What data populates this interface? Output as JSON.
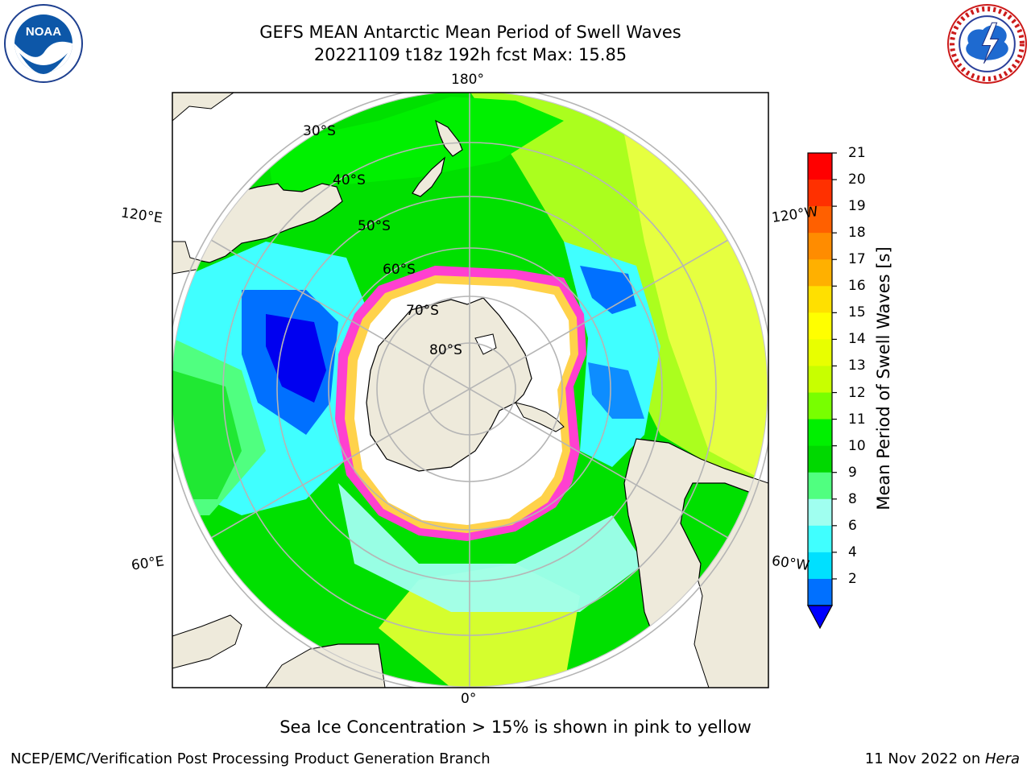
{
  "header": {
    "title_line1": "GEFS MEAN Antarctic Mean Period of Swell Waves",
    "title_line2": "20221109 t18z 192h fcst   Max: 15.85"
  },
  "logos": {
    "left": "NOAA",
    "right": "NATIONAL WEATHER SERVICE"
  },
  "map": {
    "projection": "south polar stereographic",
    "meridian_labels": {
      "top": "180°",
      "bottom": "0°",
      "left_upper": "120°E",
      "left_lower": "60°E",
      "right_upper": "120°W",
      "right_lower": "60°W"
    },
    "parallel_labels": [
      "30°S",
      "40°S",
      "50°S",
      "60°S",
      "70°S",
      "80°S"
    ],
    "colors": {
      "land": "#eeeadb",
      "sea_ice_open": "#ffffff",
      "sea_ice_edge_pink": "#ff40d0",
      "sea_ice_edge_yellow": "#ffd24a",
      "grid": "#b5b5b5"
    }
  },
  "colorbar": {
    "label": "Mean Period of Swell Waves [s]",
    "ticks": [
      "21",
      "20",
      "19",
      "18",
      "17",
      "16",
      "15",
      "14",
      "13",
      "12",
      "11",
      "10",
      "9",
      "8",
      "6",
      "4",
      "2"
    ],
    "colors": [
      "#ff0000",
      "#ff3000",
      "#ff6000",
      "#ff8c00",
      "#ffb000",
      "#ffe000",
      "#ffff00",
      "#e8ff00",
      "#c8ff00",
      "#78ff00",
      "#00f000",
      "#00d800",
      "#50ff80",
      "#a0fff0",
      "#40ffff",
      "#00e0ff",
      "#0070ff"
    ],
    "extend_color": "#0000ff"
  },
  "caption": "Sea Ice Concentration > 15% is shown in pink to yellow",
  "footer": {
    "left": "NCEP/EMC/Verification Post Processing Product Generation Branch",
    "right_prefix": "11 Nov 2022 on ",
    "right_host": "Hera"
  }
}
